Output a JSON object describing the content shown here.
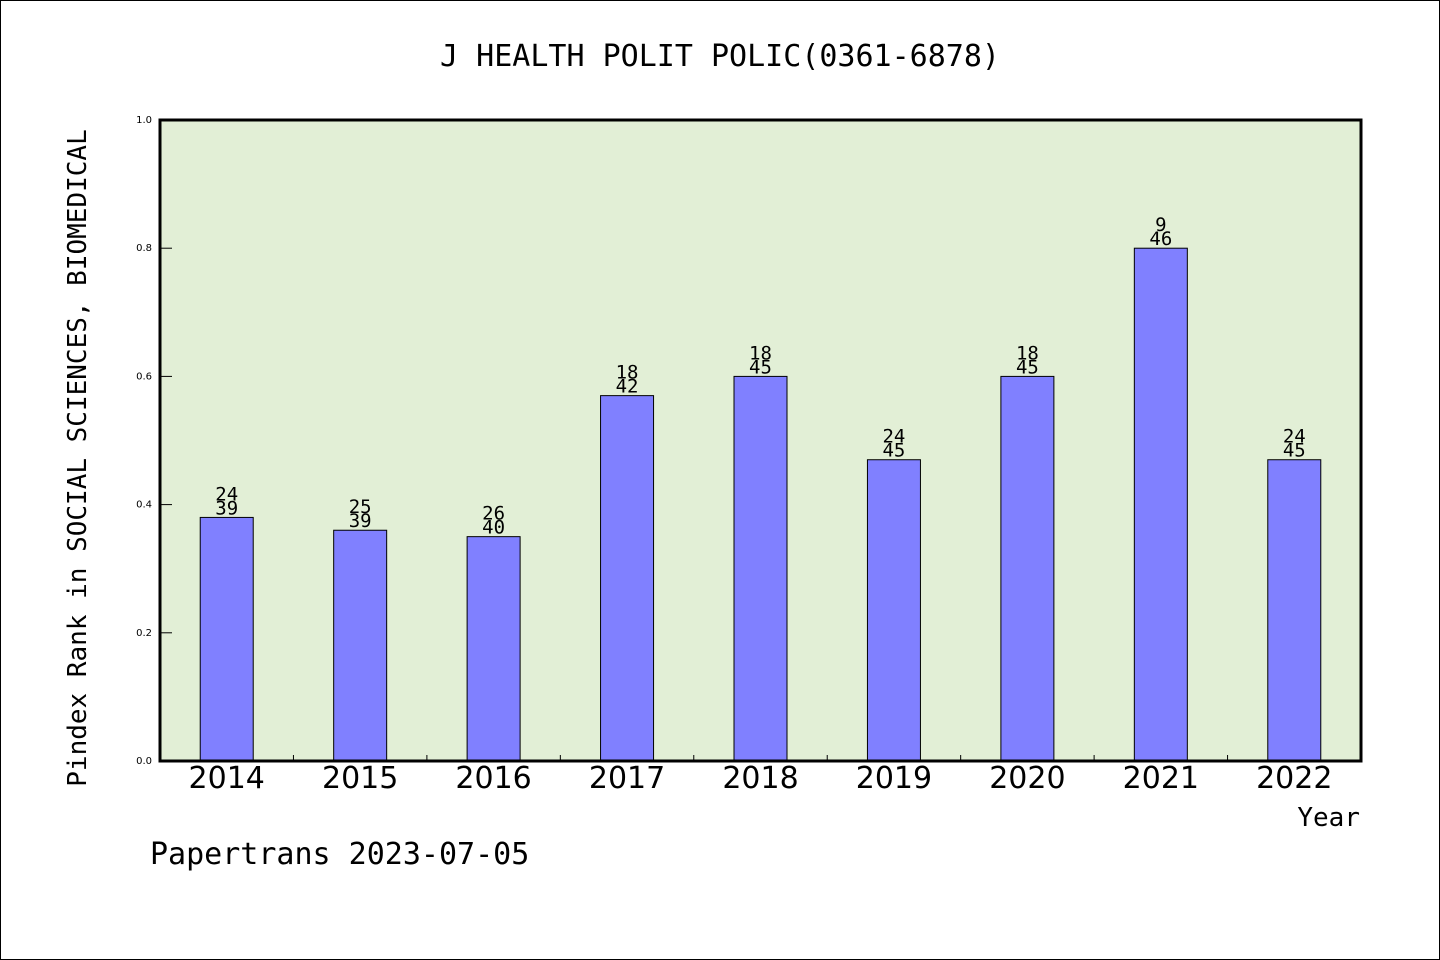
{
  "chart_data": {
    "type": "bar",
    "title": "J HEALTH POLIT POLIC(0361-6878)",
    "xlabel": "Year",
    "ylabel": "Pindex Rank in SOCIAL SCIENCES, BIOMEDICAL",
    "ylim": [
      0,
      1.0
    ],
    "yticks": [
      "0.0",
      "0.2",
      "0.4",
      "0.6",
      "0.8",
      "1.0"
    ],
    "categories": [
      "2014",
      "2015",
      "2016",
      "2017",
      "2018",
      "2019",
      "2020",
      "2021",
      "2022"
    ],
    "values": [
      0.38,
      0.36,
      0.35,
      0.57,
      0.6,
      0.47,
      0.6,
      0.8,
      0.47
    ],
    "rank_labels": [
      "24",
      "25",
      "26",
      "18",
      "18",
      "24",
      "18",
      "9",
      "24"
    ],
    "total_labels": [
      "39",
      "39",
      "40",
      "42",
      "45",
      "45",
      "45",
      "46",
      "45"
    ],
    "grid": false,
    "plot_background": "#e2efd6",
    "bar_color": "#8080ff"
  },
  "footer": "Papertrans 2023-07-05"
}
